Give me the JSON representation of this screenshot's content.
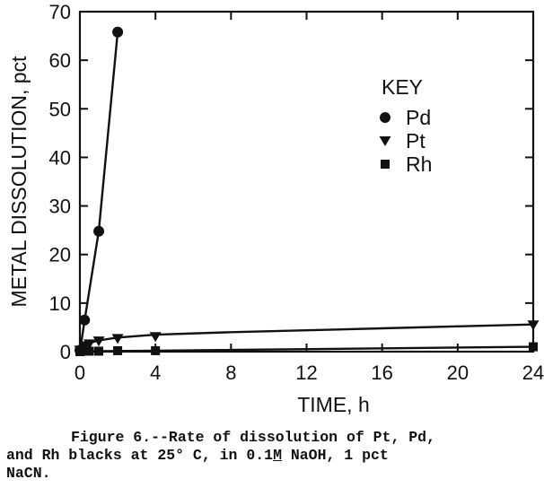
{
  "chart_data": {
    "type": "scatter",
    "title": "",
    "xlabel": "TIME, h",
    "ylabel": "METAL DISSOLUTION, pct",
    "xlim": [
      0,
      24
    ],
    "ylim": [
      0,
      70
    ],
    "xticks": [
      0,
      4,
      8,
      12,
      16,
      20,
      24
    ],
    "yticks": [
      0,
      10,
      20,
      30,
      40,
      50,
      60,
      70
    ],
    "grid": false,
    "legend_title": "KEY",
    "legend_position": "right",
    "series": [
      {
        "name": "Pd",
        "marker": "circle",
        "x": [
          0,
          0.25,
          1,
          2
        ],
        "y": [
          0.3,
          6.5,
          24.8,
          65.8
        ],
        "fit_line": [
          [
            0,
            0
          ],
          [
            0.25,
            6.5
          ],
          [
            1,
            24.8
          ],
          [
            2,
            65.8
          ]
        ]
      },
      {
        "name": "Pt",
        "marker": "triangle-down",
        "x": [
          0,
          0.25,
          0.5,
          1,
          2,
          4,
          24
        ],
        "y": [
          0.3,
          1.2,
          1.6,
          2.2,
          2.7,
          3.1,
          5.5
        ],
        "fit_line": [
          [
            0,
            0.5
          ],
          [
            0.5,
            1.8
          ],
          [
            1,
            2.3
          ],
          [
            2,
            2.9
          ],
          [
            4,
            3.5
          ],
          [
            8,
            4.0
          ],
          [
            12,
            4.4
          ],
          [
            16,
            4.8
          ],
          [
            20,
            5.2
          ],
          [
            24,
            5.6
          ]
        ]
      },
      {
        "name": "Rh",
        "marker": "square",
        "x": [
          0,
          0.25,
          0.5,
          1,
          2,
          4,
          24
        ],
        "y": [
          0,
          0.1,
          0.1,
          0.1,
          0.2,
          0.2,
          1.0
        ],
        "fit_line": [
          [
            0,
            0
          ],
          [
            1,
            0.1
          ],
          [
            4,
            0.2
          ],
          [
            24,
            1.0
          ]
        ]
      }
    ]
  },
  "caption": {
    "line1": "Figure 6.--Rate of dissolution of Pt, Pd,",
    "line2_prefix": "and Rh blacks at 25° C, in 0.1",
    "line2_unit": "M",
    "line2_suffix": " NaOH, 1 pct",
    "line3": "NaCN."
  }
}
